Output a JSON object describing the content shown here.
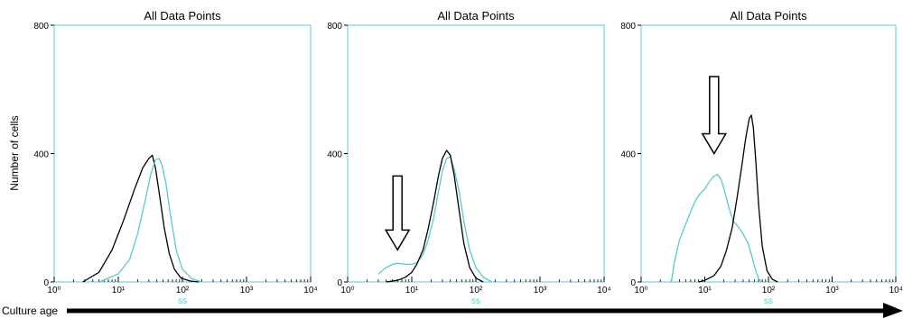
{
  "ylabel": "Number of cells",
  "culture_age_label": "Culture age",
  "colors": {
    "frame": "#5ec8cf",
    "series_black": "#000000",
    "series_cyan": "#5ec8cf",
    "ss_label": "#5ec8cf",
    "arrow": "#000000"
  },
  "chart_data": [
    {
      "type": "line",
      "title": "All Data Points",
      "xlabel": "ss",
      "ylabel": "Number of cells",
      "xscale": "log",
      "xlim": [
        1,
        10000
      ],
      "ylim": [
        0,
        800
      ],
      "x_tick_labels": [
        "10⁰",
        "10¹",
        "10²",
        "10³",
        "10⁴"
      ],
      "y_tick_labels": [
        "0",
        "400",
        "800"
      ],
      "y_ticks": [
        0,
        400,
        800
      ],
      "grid": false,
      "series": [
        {
          "color": "#000000",
          "x": [
            2.8,
            5,
            8,
            12,
            18,
            24,
            30,
            34,
            38,
            44,
            52,
            62,
            75,
            95,
            130,
            180
          ],
          "values": [
            0,
            30,
            100,
            190,
            290,
            355,
            385,
            395,
            355,
            270,
            170,
            90,
            40,
            12,
            3,
            0
          ]
        },
        {
          "color": "#5ec8cf",
          "x": [
            5,
            10,
            15,
            20,
            26,
            32,
            38,
            43,
            48,
            55,
            65,
            80,
            100,
            140,
            200
          ],
          "values": [
            0,
            25,
            70,
            150,
            250,
            335,
            380,
            385,
            365,
            310,
            210,
            100,
            40,
            10,
            0
          ]
        }
      ]
    },
    {
      "type": "line",
      "title": "All Data Points",
      "xlabel": "ss",
      "ylabel": "",
      "xscale": "log",
      "xlim": [
        1,
        10000
      ],
      "ylim": [
        0,
        800
      ],
      "x_tick_labels": [
        "10⁰",
        "10¹",
        "10²",
        "10³",
        "10⁴"
      ],
      "y_tick_labels": [
        "0",
        "400",
        "800"
      ],
      "y_ticks": [
        0,
        400,
        800
      ],
      "grid": false,
      "annotations": [
        {
          "type": "arrow",
          "x": 6,
          "y_top": 330,
          "y_tip": 100,
          "direction": "down"
        }
      ],
      "series": [
        {
          "color": "#5ec8cf",
          "x": [
            3,
            4,
            5,
            6,
            8,
            10,
            12,
            15,
            18,
            22,
            26,
            30,
            35,
            40,
            46,
            55,
            65,
            80,
            100,
            130,
            180
          ],
          "values": [
            25,
            45,
            55,
            58,
            55,
            55,
            60,
            85,
            130,
            200,
            280,
            345,
            385,
            390,
            350,
            280,
            190,
            100,
            45,
            15,
            0
          ]
        },
        {
          "color": "#000000",
          "x": [
            4,
            6,
            8,
            10,
            12,
            15,
            18,
            22,
            26,
            30,
            35,
            40,
            46,
            55,
            65,
            80,
            100,
            130
          ],
          "values": [
            0,
            5,
            15,
            30,
            55,
            100,
            165,
            250,
            330,
            385,
            410,
            395,
            330,
            220,
            120,
            45,
            12,
            0
          ]
        }
      ]
    },
    {
      "type": "line",
      "title": "All Data Points",
      "xlabel": "ss",
      "ylabel": "",
      "xscale": "log",
      "xlim": [
        1,
        10000
      ],
      "ylim": [
        0,
        800
      ],
      "x_tick_labels": [
        "10⁰",
        "10¹",
        "10²",
        "10³",
        "10⁴"
      ],
      "y_tick_labels": [
        "0",
        "400",
        "800"
      ],
      "y_ticks": [
        0,
        400,
        800
      ],
      "grid": false,
      "annotations": [
        {
          "type": "arrow",
          "x": 14,
          "y_top": 640,
          "y_tip": 400,
          "direction": "down"
        }
      ],
      "series": [
        {
          "color": "#5ec8cf",
          "x": [
            3,
            3.3,
            4,
            5,
            6,
            7,
            8,
            10,
            12,
            14,
            16,
            18,
            20,
            24,
            28,
            34,
            40,
            48,
            55,
            62,
            70,
            78
          ],
          "values": [
            0,
            60,
            130,
            180,
            220,
            250,
            270,
            290,
            315,
            330,
            335,
            320,
            290,
            230,
            190,
            170,
            150,
            120,
            80,
            40,
            10,
            0
          ]
        },
        {
          "color": "#000000",
          "x": [
            8,
            10,
            14,
            18,
            22,
            27,
            32,
            38,
            44,
            50,
            54,
            58,
            63,
            70,
            80,
            95,
            115,
            140
          ],
          "values": [
            0,
            5,
            20,
            50,
            100,
            170,
            260,
            360,
            450,
            510,
            520,
            480,
            380,
            240,
            110,
            35,
            8,
            0
          ]
        }
      ]
    }
  ]
}
